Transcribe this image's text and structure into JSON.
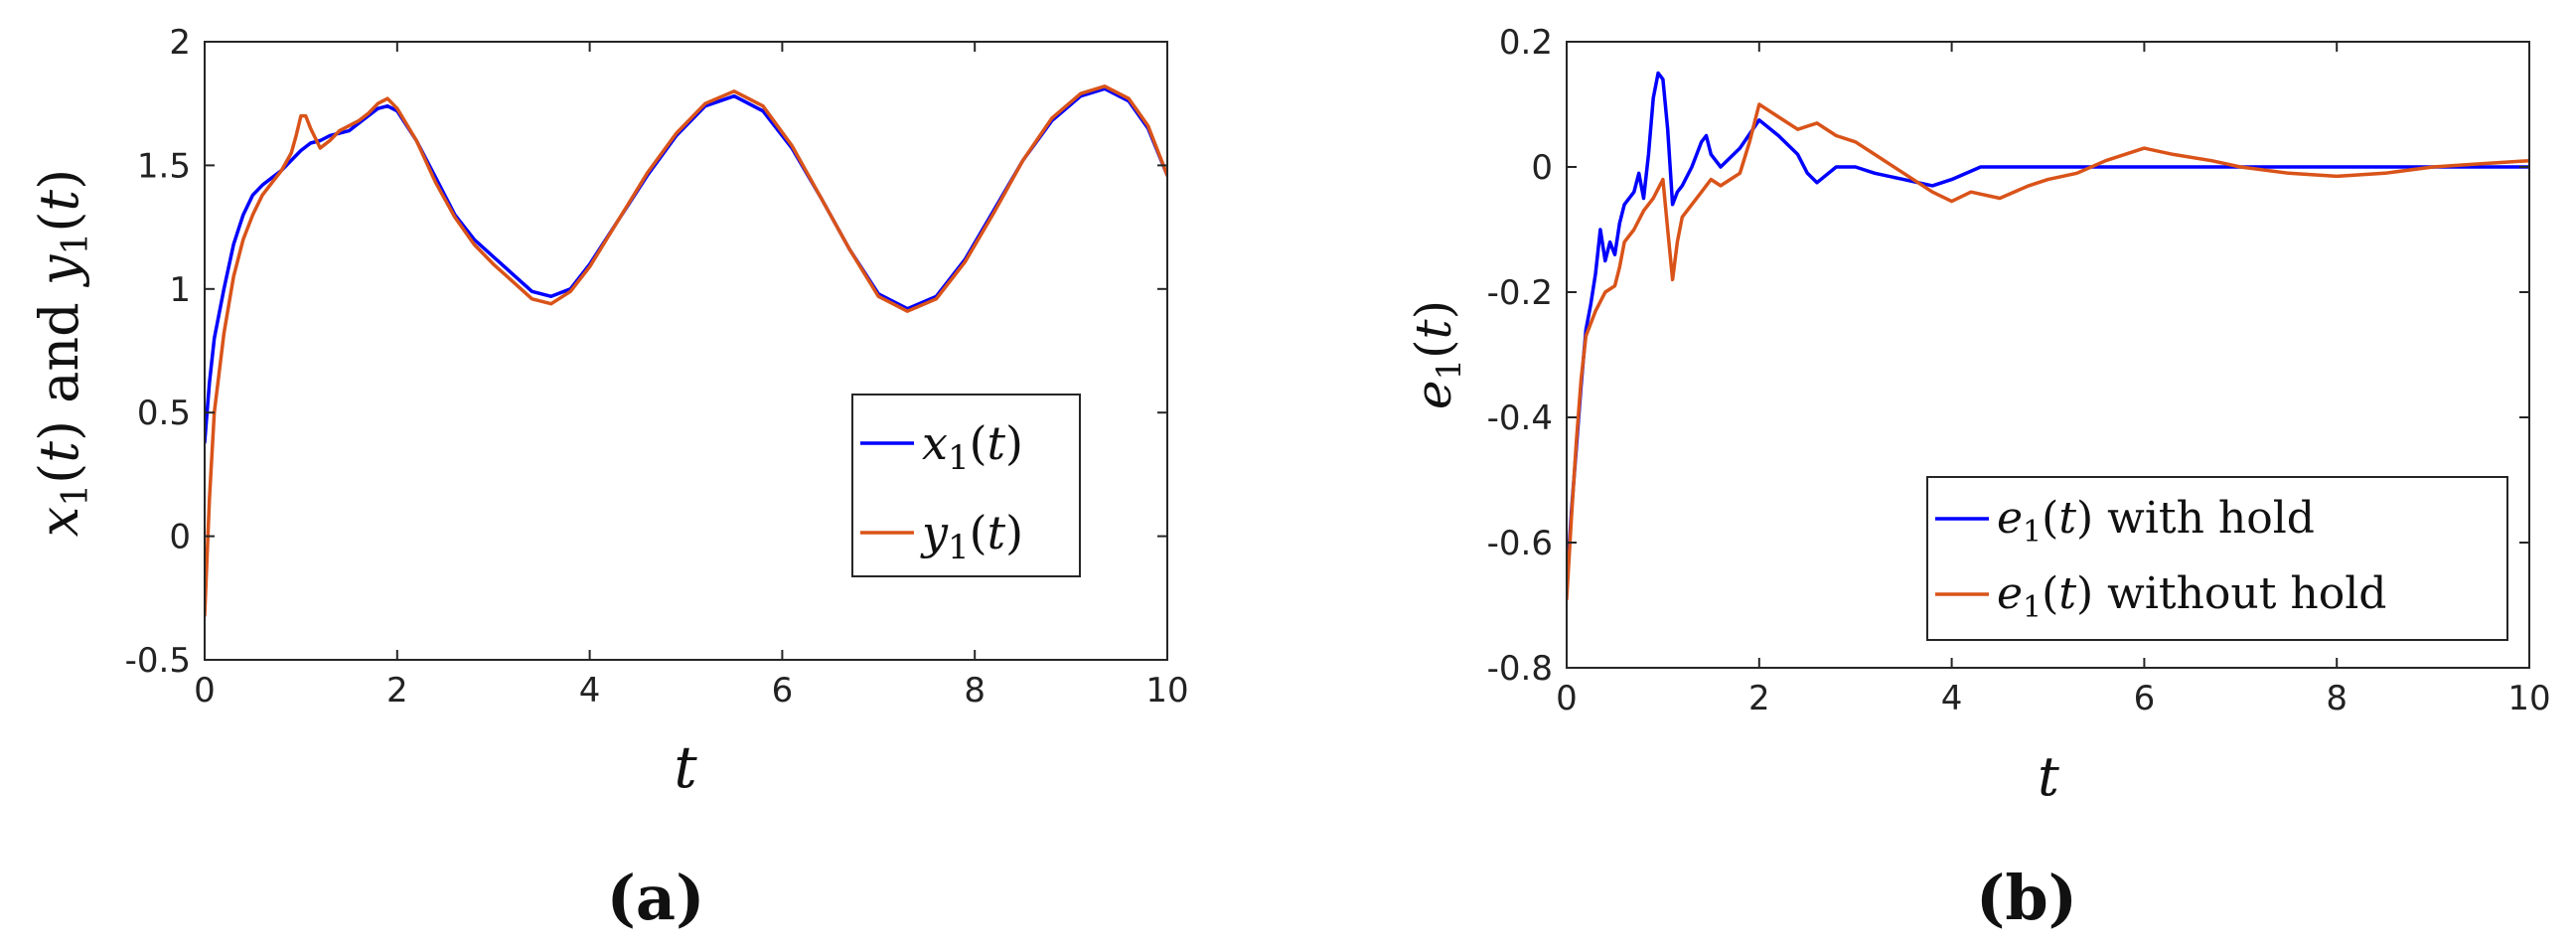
{
  "chart_data": [
    {
      "type": "line",
      "panel_label": "(a)",
      "xlabel": "t",
      "ylabel": "x1(t) and y1(t)",
      "xlim": [
        0,
        10
      ],
      "ylim": [
        -0.5,
        2
      ],
      "xticks": [
        "0",
        "2",
        "4",
        "6",
        "8",
        "10"
      ],
      "yticks": [
        "-0.5",
        "0",
        "0.5",
        "1",
        "1.5",
        "2"
      ],
      "legend": "bottom-right",
      "grid": false,
      "series": [
        {
          "name": "x1(t)",
          "color": "#0000ff",
          "points": [
            [
              0,
              0.38
            ],
            [
              0.05,
              0.62
            ],
            [
              0.1,
              0.8
            ],
            [
              0.2,
              1.0
            ],
            [
              0.3,
              1.18
            ],
            [
              0.4,
              1.3
            ],
            [
              0.5,
              1.38
            ],
            [
              0.6,
              1.42
            ],
            [
              0.7,
              1.45
            ],
            [
              0.8,
              1.48
            ],
            [
              0.9,
              1.52
            ],
            [
              1.0,
              1.56
            ],
            [
              1.1,
              1.59
            ],
            [
              1.2,
              1.6
            ],
            [
              1.3,
              1.62
            ],
            [
              1.4,
              1.63
            ],
            [
              1.5,
              1.64
            ],
            [
              1.6,
              1.67
            ],
            [
              1.7,
              1.7
            ],
            [
              1.8,
              1.73
            ],
            [
              1.9,
              1.74
            ],
            [
              2.0,
              1.72
            ],
            [
              2.2,
              1.6
            ],
            [
              2.4,
              1.45
            ],
            [
              2.6,
              1.3
            ],
            [
              2.8,
              1.2
            ],
            [
              3.0,
              1.13
            ],
            [
              3.2,
              1.06
            ],
            [
              3.4,
              0.99
            ],
            [
              3.6,
              0.97
            ],
            [
              3.8,
              1.0
            ],
            [
              4.0,
              1.1
            ],
            [
              4.3,
              1.28
            ],
            [
              4.6,
              1.46
            ],
            [
              4.9,
              1.62
            ],
            [
              5.2,
              1.74
            ],
            [
              5.5,
              1.78
            ],
            [
              5.8,
              1.72
            ],
            [
              6.1,
              1.57
            ],
            [
              6.4,
              1.37
            ],
            [
              6.7,
              1.16
            ],
            [
              7.0,
              0.98
            ],
            [
              7.3,
              0.92
            ],
            [
              7.6,
              0.97
            ],
            [
              7.9,
              1.12
            ],
            [
              8.2,
              1.32
            ],
            [
              8.5,
              1.52
            ],
            [
              8.8,
              1.68
            ],
            [
              9.1,
              1.78
            ],
            [
              9.35,
              1.81
            ],
            [
              9.6,
              1.76
            ],
            [
              9.8,
              1.65
            ],
            [
              10.0,
              1.46
            ]
          ]
        },
        {
          "name": "y1(t)",
          "color": "#d95319",
          "points": [
            [
              0,
              -0.32
            ],
            [
              0.05,
              0.15
            ],
            [
              0.1,
              0.5
            ],
            [
              0.2,
              0.82
            ],
            [
              0.3,
              1.05
            ],
            [
              0.4,
              1.2
            ],
            [
              0.5,
              1.3
            ],
            [
              0.6,
              1.38
            ],
            [
              0.7,
              1.43
            ],
            [
              0.8,
              1.48
            ],
            [
              0.9,
              1.55
            ],
            [
              0.95,
              1.62
            ],
            [
              1.0,
              1.7
            ],
            [
              1.05,
              1.7
            ],
            [
              1.1,
              1.65
            ],
            [
              1.2,
              1.57
            ],
            [
              1.3,
              1.6
            ],
            [
              1.4,
              1.64
            ],
            [
              1.5,
              1.66
            ],
            [
              1.6,
              1.68
            ],
            [
              1.7,
              1.71
            ],
            [
              1.8,
              1.75
            ],
            [
              1.9,
              1.77
            ],
            [
              2.0,
              1.73
            ],
            [
              2.2,
              1.6
            ],
            [
              2.4,
              1.43
            ],
            [
              2.6,
              1.29
            ],
            [
              2.8,
              1.18
            ],
            [
              3.0,
              1.1
            ],
            [
              3.2,
              1.03
            ],
            [
              3.4,
              0.96
            ],
            [
              3.6,
              0.94
            ],
            [
              3.8,
              0.99
            ],
            [
              4.0,
              1.09
            ],
            [
              4.3,
              1.28
            ],
            [
              4.6,
              1.47
            ],
            [
              4.9,
              1.63
            ],
            [
              5.2,
              1.75
            ],
            [
              5.5,
              1.8
            ],
            [
              5.8,
              1.74
            ],
            [
              6.1,
              1.58
            ],
            [
              6.4,
              1.37
            ],
            [
              6.7,
              1.16
            ],
            [
              7.0,
              0.97
            ],
            [
              7.3,
              0.91
            ],
            [
              7.6,
              0.96
            ],
            [
              7.9,
              1.11
            ],
            [
              8.2,
              1.31
            ],
            [
              8.5,
              1.52
            ],
            [
              8.8,
              1.69
            ],
            [
              9.1,
              1.79
            ],
            [
              9.35,
              1.82
            ],
            [
              9.6,
              1.77
            ],
            [
              9.8,
              1.66
            ],
            [
              10.0,
              1.46
            ]
          ]
        }
      ]
    },
    {
      "type": "line",
      "panel_label": "(b)",
      "xlabel": "t",
      "ylabel": "e1(t)",
      "xlim": [
        0,
        10
      ],
      "ylim": [
        -0.8,
        0.2
      ],
      "xticks": [
        "0",
        "2",
        "4",
        "6",
        "8",
        "10"
      ],
      "yticks": [
        "-0.8",
        "-0.6",
        "-0.4",
        "-0.2",
        "0",
        "0.2"
      ],
      "legend": "bottom-right",
      "grid": false,
      "series": [
        {
          "name": "e1(t) with hold",
          "color": "#0000ff",
          "points": [
            [
              0,
              -0.67
            ],
            [
              0.05,
              -0.55
            ],
            [
              0.1,
              -0.45
            ],
            [
              0.15,
              -0.35
            ],
            [
              0.2,
              -0.26
            ],
            [
              0.25,
              -0.22
            ],
            [
              0.3,
              -0.17
            ],
            [
              0.35,
              -0.1
            ],
            [
              0.4,
              -0.15
            ],
            [
              0.45,
              -0.12
            ],
            [
              0.5,
              -0.14
            ],
            [
              0.55,
              -0.09
            ],
            [
              0.6,
              -0.06
            ],
            [
              0.7,
              -0.04
            ],
            [
              0.75,
              -0.01
            ],
            [
              0.8,
              -0.05
            ],
            [
              0.85,
              0.02
            ],
            [
              0.9,
              0.11
            ],
            [
              0.95,
              0.15
            ],
            [
              1.0,
              0.14
            ],
            [
              1.05,
              0.06
            ],
            [
              1.1,
              -0.06
            ],
            [
              1.15,
              -0.04
            ],
            [
              1.2,
              -0.03
            ],
            [
              1.3,
              0.0
            ],
            [
              1.4,
              0.04
            ],
            [
              1.45,
              0.05
            ],
            [
              1.5,
              0.02
            ],
            [
              1.6,
              0.0
            ],
            [
              1.8,
              0.03
            ],
            [
              2.0,
              0.075
            ],
            [
              2.2,
              0.05
            ],
            [
              2.4,
              0.02
            ],
            [
              2.5,
              -0.01
            ],
            [
              2.6,
              -0.025
            ],
            [
              2.8,
              0.0
            ],
            [
              3.0,
              0.0
            ],
            [
              3.2,
              -0.01
            ],
            [
              3.5,
              -0.02
            ],
            [
              3.8,
              -0.03
            ],
            [
              4.0,
              -0.02
            ],
            [
              4.3,
              0.0
            ],
            [
              4.7,
              0.0
            ],
            [
              5.0,
              0.0
            ],
            [
              5.5,
              0.0
            ],
            [
              6.0,
              0.0
            ],
            [
              7.0,
              0.0
            ],
            [
              8.0,
              0.0
            ],
            [
              9.0,
              0.0
            ],
            [
              10.0,
              0.0
            ]
          ]
        },
        {
          "name": "e1(t) without hold",
          "color": "#d95319",
          "points": [
            [
              0,
              -0.69
            ],
            [
              0.05,
              -0.56
            ],
            [
              0.1,
              -0.44
            ],
            [
              0.15,
              -0.34
            ],
            [
              0.2,
              -0.27
            ],
            [
              0.3,
              -0.23
            ],
            [
              0.4,
              -0.2
            ],
            [
              0.5,
              -0.19
            ],
            [
              0.55,
              -0.16
            ],
            [
              0.6,
              -0.12
            ],
            [
              0.7,
              -0.1
            ],
            [
              0.8,
              -0.07
            ],
            [
              0.9,
              -0.05
            ],
            [
              1.0,
              -0.02
            ],
            [
              1.05,
              -0.1
            ],
            [
              1.1,
              -0.18
            ],
            [
              1.15,
              -0.12
            ],
            [
              1.2,
              -0.08
            ],
            [
              1.3,
              -0.06
            ],
            [
              1.4,
              -0.04
            ],
            [
              1.5,
              -0.02
            ],
            [
              1.6,
              -0.03
            ],
            [
              1.8,
              -0.01
            ],
            [
              1.9,
              0.04
            ],
            [
              2.0,
              0.1
            ],
            [
              2.2,
              0.08
            ],
            [
              2.4,
              0.06
            ],
            [
              2.6,
              0.07
            ],
            [
              2.8,
              0.05
            ],
            [
              3.0,
              0.04
            ],
            [
              3.2,
              0.02
            ],
            [
              3.5,
              -0.01
            ],
            [
              3.8,
              -0.04
            ],
            [
              4.0,
              -0.055
            ],
            [
              4.2,
              -0.04
            ],
            [
              4.5,
              -0.05
            ],
            [
              4.8,
              -0.03
            ],
            [
              5.0,
              -0.02
            ],
            [
              5.3,
              -0.01
            ],
            [
              5.6,
              0.01
            ],
            [
              6.0,
              0.03
            ],
            [
              6.3,
              0.02
            ],
            [
              6.7,
              0.01
            ],
            [
              7.0,
              0.0
            ],
            [
              7.5,
              -0.01
            ],
            [
              8.0,
              -0.015
            ],
            [
              8.5,
              -0.01
            ],
            [
              9.0,
              0.0
            ],
            [
              9.5,
              0.005
            ],
            [
              10.0,
              0.01
            ]
          ]
        }
      ]
    }
  ]
}
